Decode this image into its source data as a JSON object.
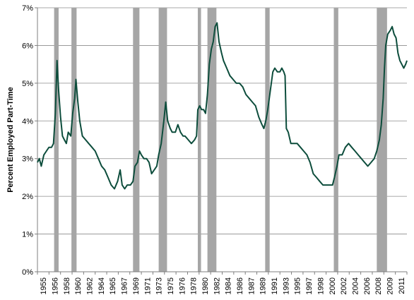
{
  "chart_data": {
    "type": "line",
    "title": "",
    "xlabel": "",
    "ylabel": "Percent Employed Part-Time",
    "xlim": [
      1955.0,
      2012.6
    ],
    "ylim": [
      0,
      7
    ],
    "y_ticks": [
      "0%",
      "1%",
      "2%",
      "3%",
      "4%",
      "5%",
      "6%",
      "7%"
    ],
    "x_ticks": [
      "1955",
      "1956",
      "1958",
      "1960",
      "1962",
      "1964",
      "1965",
      "1967",
      "1969",
      "1971",
      "1973",
      "1975",
      "1976",
      "1978",
      "1980",
      "1982",
      "1984",
      "1986",
      "1987",
      "1989",
      "1991",
      "1993",
      "1995",
      "1997",
      "1998",
      "2000",
      "2002",
      "2004",
      "2006",
      "2008",
      "2009",
      "2011"
    ],
    "grid": "horizontal",
    "line_color": "#0d4d3c",
    "recession_color": "#a6a6a6",
    "recessions": [
      [
        1957.6,
        1958.3
      ],
      [
        1960.3,
        1961.1
      ],
      [
        1969.9,
        1970.9
      ],
      [
        1973.9,
        1975.2
      ],
      [
        1980.0,
        1980.5
      ],
      [
        1981.5,
        1982.9
      ],
      [
        1990.5,
        1991.2
      ],
      [
        2001.2,
        2001.9
      ],
      [
        2007.9,
        2009.5
      ]
    ],
    "series": [
      {
        "values": [
          [
            1955.0,
            2.9
          ],
          [
            1955.3,
            3.0
          ],
          [
            1955.6,
            2.8
          ],
          [
            1956.0,
            3.1
          ],
          [
            1956.4,
            3.2
          ],
          [
            1956.8,
            3.3
          ],
          [
            1957.2,
            3.3
          ],
          [
            1957.5,
            3.4
          ],
          [
            1957.8,
            4.2
          ],
          [
            1958.05,
            5.6
          ],
          [
            1958.3,
            4.8
          ],
          [
            1958.6,
            4.1
          ],
          [
            1958.9,
            3.6
          ],
          [
            1959.2,
            3.5
          ],
          [
            1959.5,
            3.4
          ],
          [
            1959.8,
            3.7
          ],
          [
            1960.2,
            3.6
          ],
          [
            1960.5,
            4.2
          ],
          [
            1960.8,
            4.6
          ],
          [
            1961.0,
            5.1
          ],
          [
            1961.3,
            4.5
          ],
          [
            1961.6,
            4.0
          ],
          [
            1962.0,
            3.6
          ],
          [
            1962.5,
            3.5
          ],
          [
            1963.0,
            3.4
          ],
          [
            1963.5,
            3.3
          ],
          [
            1964.0,
            3.2
          ],
          [
            1964.5,
            3.0
          ],
          [
            1965.0,
            2.8
          ],
          [
            1965.5,
            2.7
          ],
          [
            1966.0,
            2.5
          ],
          [
            1966.5,
            2.3
          ],
          [
            1967.0,
            2.2
          ],
          [
            1967.5,
            2.4
          ],
          [
            1967.9,
            2.7
          ],
          [
            1968.2,
            2.3
          ],
          [
            1968.6,
            2.2
          ],
          [
            1969.0,
            2.3
          ],
          [
            1969.5,
            2.3
          ],
          [
            1969.9,
            2.4
          ],
          [
            1970.2,
            2.8
          ],
          [
            1970.6,
            2.9
          ],
          [
            1970.9,
            3.2
          ],
          [
            1971.2,
            3.1
          ],
          [
            1971.6,
            3.0
          ],
          [
            1972.0,
            3.0
          ],
          [
            1972.4,
            2.9
          ],
          [
            1972.8,
            2.6
          ],
          [
            1973.2,
            2.7
          ],
          [
            1973.6,
            2.8
          ],
          [
            1973.9,
            3.1
          ],
          [
            1974.3,
            3.4
          ],
          [
            1974.7,
            4.0
          ],
          [
            1975.0,
            4.5
          ],
          [
            1975.3,
            4.0
          ],
          [
            1975.7,
            3.8
          ],
          [
            1976.0,
            3.7
          ],
          [
            1976.5,
            3.7
          ],
          [
            1976.9,
            3.9
          ],
          [
            1977.3,
            3.7
          ],
          [
            1977.7,
            3.6
          ],
          [
            1978.0,
            3.6
          ],
          [
            1978.5,
            3.5
          ],
          [
            1979.0,
            3.4
          ],
          [
            1979.5,
            3.5
          ],
          [
            1979.8,
            3.6
          ],
          [
            1980.0,
            4.3
          ],
          [
            1980.3,
            4.4
          ],
          [
            1980.6,
            4.3
          ],
          [
            1980.9,
            4.3
          ],
          [
            1981.2,
            4.2
          ],
          [
            1981.5,
            4.7
          ],
          [
            1981.8,
            5.5
          ],
          [
            1982.1,
            5.9
          ],
          [
            1982.4,
            6.1
          ],
          [
            1982.7,
            6.5
          ],
          [
            1983.0,
            6.6
          ],
          [
            1983.3,
            6.1
          ],
          [
            1983.7,
            5.8
          ],
          [
            1984.0,
            5.6
          ],
          [
            1984.5,
            5.4
          ],
          [
            1985.0,
            5.2
          ],
          [
            1985.5,
            5.1
          ],
          [
            1986.0,
            5.0
          ],
          [
            1986.5,
            5.0
          ],
          [
            1987.0,
            4.9
          ],
          [
            1987.5,
            4.7
          ],
          [
            1988.0,
            4.6
          ],
          [
            1988.5,
            4.5
          ],
          [
            1989.0,
            4.4
          ],
          [
            1989.5,
            4.1
          ],
          [
            1990.0,
            3.9
          ],
          [
            1990.3,
            3.8
          ],
          [
            1990.6,
            4.0
          ],
          [
            1990.9,
            4.3
          ],
          [
            1991.3,
            4.8
          ],
          [
            1991.7,
            5.3
          ],
          [
            1992.0,
            5.4
          ],
          [
            1992.4,
            5.3
          ],
          [
            1992.8,
            5.3
          ],
          [
            1993.1,
            5.4
          ],
          [
            1993.4,
            5.3
          ],
          [
            1993.6,
            5.2
          ],
          [
            1993.8,
            3.8
          ],
          [
            1994.1,
            3.7
          ],
          [
            1994.5,
            3.4
          ],
          [
            1995.0,
            3.4
          ],
          [
            1995.5,
            3.4
          ],
          [
            1996.0,
            3.3
          ],
          [
            1996.5,
            3.2
          ],
          [
            1997.0,
            3.1
          ],
          [
            1997.5,
            2.9
          ],
          [
            1998.0,
            2.6
          ],
          [
            1998.5,
            2.5
          ],
          [
            1999.0,
            2.4
          ],
          [
            1999.5,
            2.3
          ],
          [
            2000.0,
            2.3
          ],
          [
            2000.5,
            2.3
          ],
          [
            2001.0,
            2.3
          ],
          [
            2001.3,
            2.5
          ],
          [
            2001.7,
            2.8
          ],
          [
            2002.0,
            3.1
          ],
          [
            2002.5,
            3.1
          ],
          [
            2003.0,
            3.3
          ],
          [
            2003.5,
            3.4
          ],
          [
            2004.0,
            3.3
          ],
          [
            2004.5,
            3.2
          ],
          [
            2005.0,
            3.1
          ],
          [
            2005.5,
            3.0
          ],
          [
            2006.0,
            2.9
          ],
          [
            2006.5,
            2.8
          ],
          [
            2007.0,
            2.9
          ],
          [
            2007.5,
            3.0
          ],
          [
            2007.9,
            3.2
          ],
          [
            2008.3,
            3.5
          ],
          [
            2008.6,
            3.9
          ],
          [
            2008.9,
            4.6
          ],
          [
            2009.1,
            5.4
          ],
          [
            2009.3,
            6.0
          ],
          [
            2009.6,
            6.3
          ],
          [
            2010.0,
            6.4
          ],
          [
            2010.3,
            6.5
          ],
          [
            2010.6,
            6.3
          ],
          [
            2010.9,
            6.2
          ],
          [
            2011.2,
            5.8
          ],
          [
            2011.5,
            5.6
          ],
          [
            2011.8,
            5.5
          ],
          [
            2012.1,
            5.4
          ],
          [
            2012.4,
            5.5
          ],
          [
            2012.6,
            5.6
          ]
        ]
      }
    ]
  }
}
